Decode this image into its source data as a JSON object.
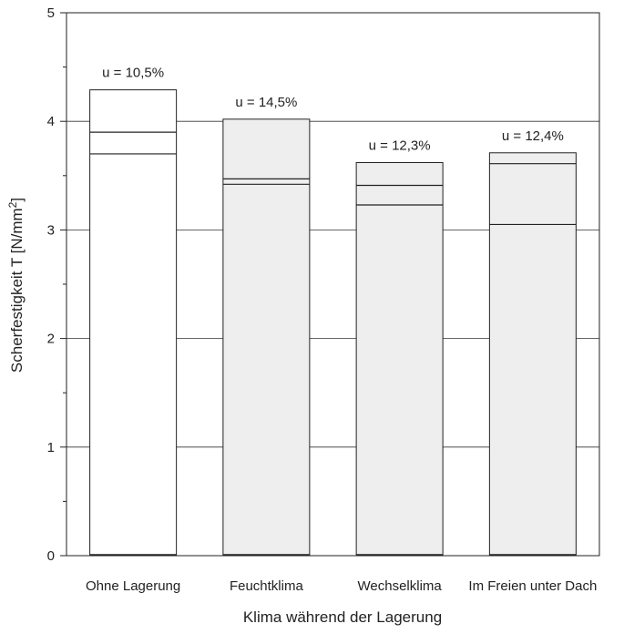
{
  "chart_data": {
    "type": "bar",
    "title": "",
    "xlabel": "Klima während der Lagerung",
    "ylabel_main": "Scherfestigkeit T [N/mm",
    "ylabel_sup": "2",
    "ylabel_tail": "]",
    "ylim": [
      0,
      5
    ],
    "yticks": [
      0,
      1,
      2,
      3,
      4,
      5
    ],
    "ytick_labels": [
      "0",
      "1",
      "2",
      "3",
      "4",
      "5"
    ],
    "minor_tick_step": 0.5,
    "grid": "horizontal",
    "categories": [
      "Ohne Lagerung",
      "Feuchtklima",
      "Wechselklima",
      "Im Freien unter Dach"
    ],
    "annotations": [
      "u = 10,5%",
      "u = 14,5%",
      "u = 12,3%",
      "u = 12,4%"
    ],
    "values": [
      4.29,
      4.02,
      3.62,
      3.71
    ],
    "inner_lines": [
      [
        3.9,
        3.7
      ],
      [
        3.47,
        3.42
      ],
      [
        3.41,
        3.23
      ],
      [
        3.61,
        3.05
      ]
    ],
    "bar_fill": [
      "#ffffff",
      "#eeeeee",
      "#eeeeee",
      "#eeeeee"
    ]
  }
}
